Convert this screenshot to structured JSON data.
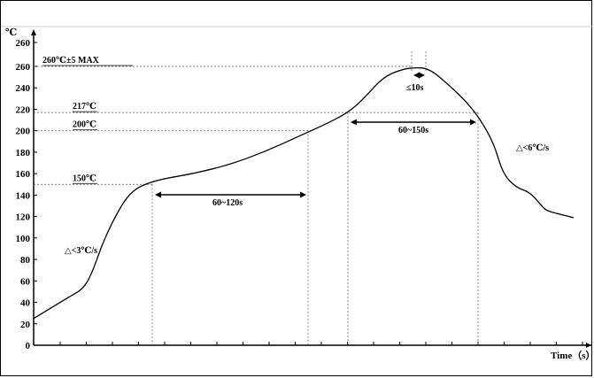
{
  "chart_data": {
    "type": "line",
    "title": "",
    "ylabel": "℃",
    "xlabel": "Time（s）",
    "ylim": [
      0,
      260
    ],
    "yticks": [
      0,
      20,
      40,
      60,
      80,
      100,
      120,
      140,
      160,
      180,
      200,
      220,
      240,
      260
    ],
    "yticks_top": "260",
    "grid": false,
    "series": [
      {
        "values_note": "",
        "points": [
          [
            0,
            25
          ],
          [
            20,
            35
          ],
          [
            40,
            45
          ],
          [
            55,
            52
          ],
          [
            65,
            65
          ],
          [
            80,
            100
          ],
          [
            100,
            132
          ],
          [
            112,
            144
          ],
          [
            125,
            150
          ],
          [
            145,
            155
          ],
          [
            180,
            160
          ],
          [
            220,
            168
          ],
          [
            260,
            180
          ],
          [
            300,
            195
          ],
          [
            340,
            210
          ],
          [
            360,
            220
          ],
          [
            375,
            232
          ],
          [
            395,
            250
          ],
          [
            415,
            257
          ],
          [
            430,
            259
          ],
          [
            447,
            258
          ],
          [
            470,
            242
          ],
          [
            490,
            226
          ],
          [
            505,
            210
          ],
          [
            520,
            188
          ],
          [
            530,
            160
          ],
          [
            545,
            147
          ],
          [
            560,
            143
          ],
          [
            572,
            132
          ],
          [
            578,
            126
          ],
          [
            590,
            123
          ],
          [
            610,
            119
          ]
        ]
      }
    ],
    "reference_lines": [
      {
        "label": "260℃±5 MAX",
        "value": 260
      },
      {
        "label": "217℃",
        "value": 217
      },
      {
        "label": "200℃",
        "value": 200
      },
      {
        "label": "150℃",
        "value": 150
      }
    ],
    "annotations": {
      "preheat_duration": "60~120s",
      "above_217_duration": "60~150s",
      "peak_duration": "≤10s",
      "ramp_up": "△<3℃/s",
      "ramp_down": "△<6℃/s"
    }
  }
}
